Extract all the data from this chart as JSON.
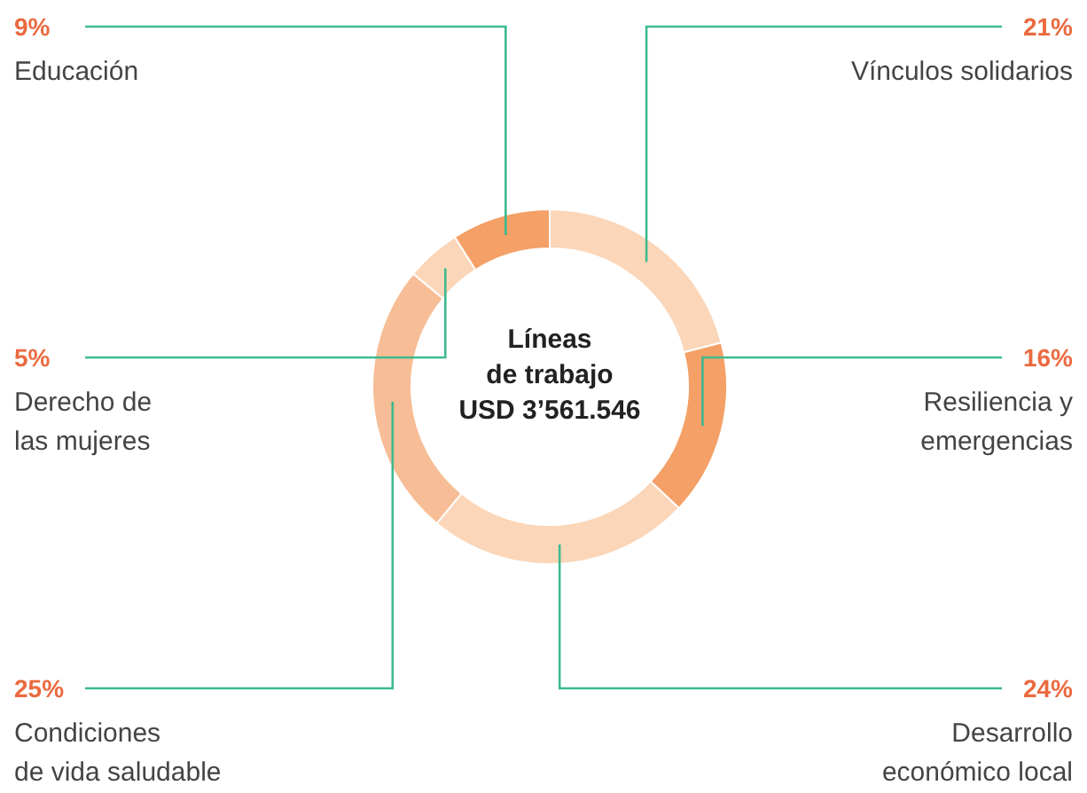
{
  "chart_data": {
    "type": "donut",
    "title": "Líneas\nde trabajo\nUSD 3’561.546",
    "categories": [
      "Vínculos solidarios",
      "Resiliencia y\nemergencias",
      "Desarrollo\neconómico local",
      "Condiciones\nde vida saludable",
      "Derecho de\nlas mujeres",
      "Educación"
    ],
    "values": [
      21,
      16,
      24,
      25,
      5,
      9
    ],
    "colors": [
      "#fbd6b8",
      "#f4a066",
      "#fbd6b8",
      "#f7bd96",
      "#fbd6b8",
      "#f4a066"
    ],
    "value_labels": [
      "21%",
      "16%",
      "24%",
      "25%",
      "5%",
      "9%"
    ]
  }
}
